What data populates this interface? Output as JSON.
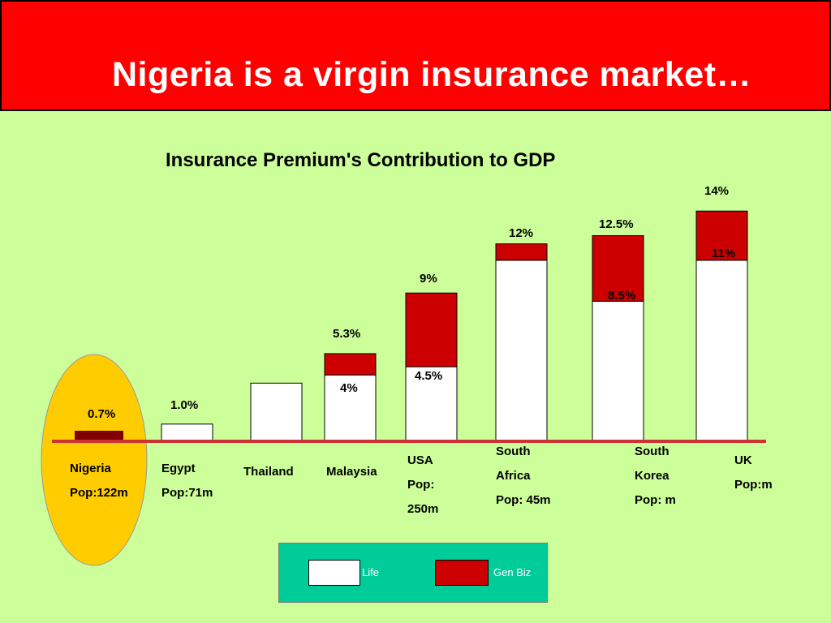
{
  "header": {
    "title": "Nigeria is a virgin insurance market…"
  },
  "colors": {
    "header_bg": "#ff0000",
    "background": "#ccff99",
    "life": "#ffffff",
    "gen_biz": "#cc0000",
    "nigeria_bar": "#800000",
    "highlight_ellipse": "#ffcc00",
    "baseline": "#cc3333",
    "legend_bg": "#00cc99"
  },
  "chart_data": {
    "type": "bar",
    "stacked": true,
    "title": "Insurance Premium's Contribution to GDP",
    "categories": [
      "Nigeria",
      "Egypt",
      "Thailand",
      "Malaysia",
      "USA",
      "South Africa",
      "South Korea",
      "UK"
    ],
    "series": [
      {
        "name": "Life",
        "values": [
          null,
          1.0,
          3.5,
          4,
          4.5,
          11,
          8.5,
          11
        ]
      },
      {
        "name": "Gen Biz",
        "values": [
          0.7,
          0,
          0,
          1.3,
          4.5,
          1,
          4,
          3
        ]
      }
    ],
    "totals": [
      0.7,
      1.0,
      3.5,
      5.3,
      9,
      12,
      12.5,
      14
    ],
    "total_labels": [
      "0.7%",
      "1.0%",
      "",
      "5.3%",
      "9%",
      "12%",
      "12.5%",
      "14%"
    ],
    "inner_labels": [
      "",
      "",
      "",
      "4%",
      "4.5%",
      "",
      "8.5%",
      "11%"
    ],
    "category_labels": [
      [
        "Nigeria",
        "Pop:122m"
      ],
      [
        "Egypt",
        "Pop:71m"
      ],
      [
        "Thailand"
      ],
      [
        "Malaysia"
      ],
      [
        "USA",
        "Pop:",
        "250m"
      ],
      [
        "South",
        "Africa",
        "Pop: 45m"
      ],
      [
        "South",
        "Korea",
        "Pop: m"
      ],
      [
        "UK",
        "Pop:m"
      ]
    ],
    "highlighted_category": "Nigeria",
    "legend": [
      "Life",
      "Gen Biz"
    ],
    "legend_position": "bottom"
  }
}
